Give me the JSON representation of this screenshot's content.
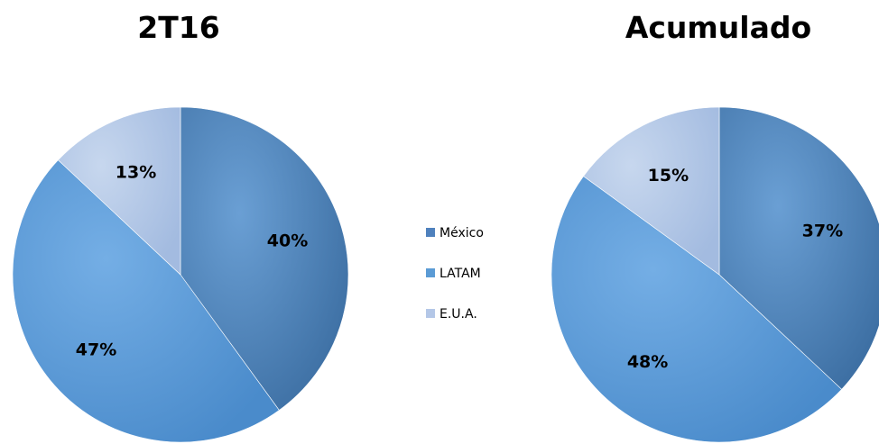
{
  "legend": {
    "position": "center",
    "items": [
      {
        "label": "México",
        "color": "#4f81bd"
      },
      {
        "label": "LATAM",
        "color": "#5b9bd5"
      },
      {
        "label": "E.U.A.",
        "color": "#b4c7e7"
      }
    ]
  },
  "chart_data": [
    {
      "type": "pie",
      "title": "2T16",
      "categories": [
        "México",
        "LATAM",
        "E.U.A."
      ],
      "values": [
        40,
        47,
        13
      ],
      "labels": [
        "40%",
        "47%",
        "13%"
      ],
      "colors": [
        "#4f81bd",
        "#5b9bd5",
        "#b4c7e7"
      ]
    },
    {
      "type": "pie",
      "title": "Acumulado",
      "categories": [
        "México",
        "LATAM",
        "E.U.A."
      ],
      "values": [
        37,
        48,
        15
      ],
      "labels": [
        "37%",
        "48%",
        "15%"
      ],
      "colors": [
        "#4f81bd",
        "#5b9bd5",
        "#b4c7e7"
      ]
    }
  ]
}
